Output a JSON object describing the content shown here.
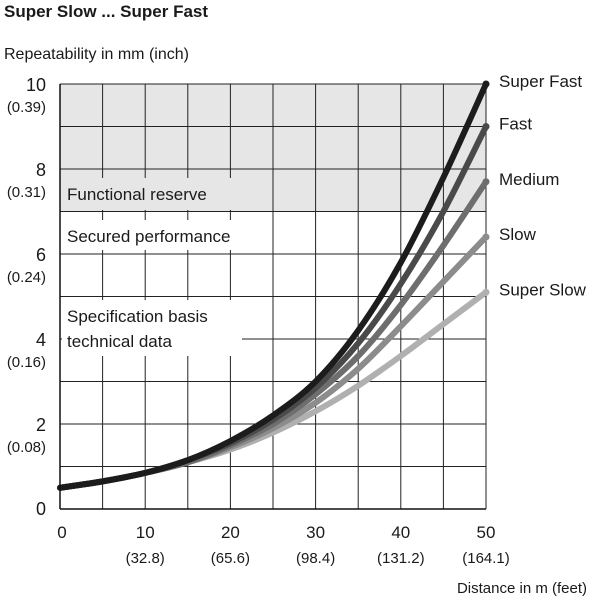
{
  "chart_data": {
    "type": "line",
    "title": "Super Slow ... Super Fast",
    "ylabel": "Repeatability in mm (inch)",
    "xlabel": "Distance in m (feet)",
    "xlim": [
      0,
      50
    ],
    "ylim": [
      0,
      10
    ],
    "grid": true,
    "x_ticks": [
      {
        "value": 0,
        "label": "0",
        "sub": ""
      },
      {
        "value": 10,
        "label": "10",
        "sub": "(32.8)"
      },
      {
        "value": 20,
        "label": "20",
        "sub": "(65.6)"
      },
      {
        "value": 30,
        "label": "30",
        "sub": "(98.4)"
      },
      {
        "value": 40,
        "label": "40",
        "sub": "(131.2)"
      },
      {
        "value": 50,
        "label": "50",
        "sub": "(164.1)"
      }
    ],
    "y_ticks": [
      {
        "value": 0,
        "label": "0",
        "sub": ""
      },
      {
        "value": 2,
        "label": "2",
        "sub": "(0.08)"
      },
      {
        "value": 4,
        "label": "4",
        "sub": "(0.16)"
      },
      {
        "value": 6,
        "label": "6",
        "sub": "(0.24)"
      },
      {
        "value": 8,
        "label": "8",
        "sub": "(0.31)"
      },
      {
        "value": 10,
        "label": "10",
        "sub": "(0.39)"
      }
    ],
    "x_grid_step": 5,
    "y_grid_step": 1,
    "regions": [
      {
        "label": "Functional reserve",
        "y_from": 7,
        "y_to": 10,
        "fill": "#e6e6e6"
      },
      {
        "label": "Secured performance",
        "y_from": 5,
        "y_to": 7,
        "fill": "#ffffff"
      }
    ],
    "annotations": [
      "Specification basis",
      "technical data"
    ],
    "series": [
      {
        "name": "Super Slow",
        "color": "#b0b0b0",
        "x": [
          0,
          5,
          10,
          15,
          20,
          25,
          30,
          35,
          40,
          45,
          50
        ],
        "y": [
          0.5,
          0.65,
          0.85,
          1.1,
          1.4,
          1.8,
          2.3,
          2.9,
          3.6,
          4.35,
          5.1
        ]
      },
      {
        "name": "Slow",
        "color": "#8c8c8c",
        "x": [
          0,
          5,
          10,
          15,
          20,
          25,
          30,
          35,
          40,
          45,
          50
        ],
        "y": [
          0.5,
          0.65,
          0.85,
          1.1,
          1.45,
          1.9,
          2.5,
          3.3,
          4.3,
          5.35,
          6.4
        ]
      },
      {
        "name": "Medium",
        "color": "#6e6e6e",
        "x": [
          0,
          5,
          10,
          15,
          20,
          25,
          30,
          35,
          40,
          45,
          50
        ],
        "y": [
          0.5,
          0.65,
          0.85,
          1.1,
          1.5,
          2.0,
          2.7,
          3.6,
          4.8,
          6.2,
          7.7
        ]
      },
      {
        "name": "Fast",
        "color": "#4a4a4a",
        "x": [
          0,
          5,
          10,
          15,
          20,
          25,
          30,
          35,
          40,
          45,
          50
        ],
        "y": [
          0.5,
          0.65,
          0.85,
          1.15,
          1.55,
          2.1,
          2.85,
          3.9,
          5.3,
          7.0,
          9.0
        ]
      },
      {
        "name": "Super Fast",
        "color": "#1c1c1c",
        "x": [
          0,
          5,
          10,
          15,
          20,
          25,
          30,
          35,
          40,
          45,
          50
        ],
        "y": [
          0.5,
          0.65,
          0.85,
          1.15,
          1.6,
          2.2,
          3.0,
          4.2,
          5.8,
          7.8,
          10.0
        ]
      }
    ]
  }
}
